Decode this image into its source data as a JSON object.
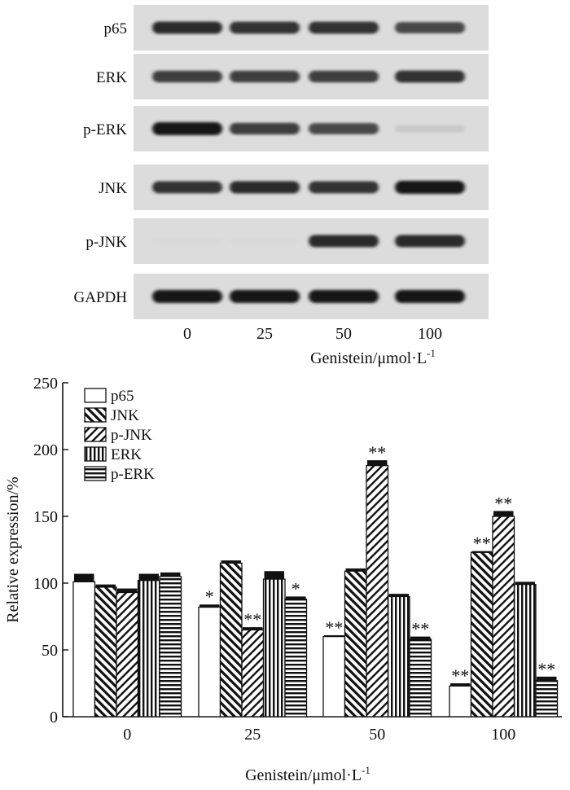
{
  "blot": {
    "lane_labels": [
      "0",
      "25",
      "50",
      "100"
    ],
    "xlabel": "Genistein/μmol·L",
    "xlabel_sup": "-1",
    "rows": [
      {
        "label": "p65",
        "intensities": [
          0.9,
          0.85,
          0.85,
          0.75
        ]
      },
      {
        "label": "ERK",
        "intensities": [
          0.8,
          0.8,
          0.8,
          0.85
        ]
      },
      {
        "label": "p-ERK",
        "intensities": [
          1.0,
          0.8,
          0.75,
          0.2
        ]
      },
      {
        "label": "JNK",
        "intensities": [
          0.85,
          0.9,
          0.85,
          1.0
        ]
      },
      {
        "label": "p-JNK",
        "intensities": [
          0.05,
          0.05,
          0.9,
          0.9
        ]
      },
      {
        "label": "GAPDH",
        "intensities": [
          1.0,
          1.0,
          1.0,
          1.0
        ]
      }
    ]
  },
  "chart_data": {
    "type": "bar",
    "categories": [
      "0",
      "25",
      "50",
      "100"
    ],
    "xlabel": "Genistein/μmol·L",
    "xlabel_sup": "-1",
    "ylabel": "Relative expression/%",
    "ylim": [
      0,
      250
    ],
    "yticks": [
      0,
      50,
      100,
      150,
      200,
      250
    ],
    "legend_position": "top-left",
    "series": [
      {
        "name": "p65",
        "pattern": "white",
        "values": [
          101,
          82,
          60,
          23
        ],
        "errors": [
          6,
          2,
          1,
          2
        ],
        "marks": [
          "",
          "*",
          "**",
          "**"
        ]
      },
      {
        "name": "JNK",
        "pattern": "diag-right",
        "values": [
          97,
          115,
          109,
          123
        ],
        "errors": [
          2,
          2,
          2,
          1
        ],
        "marks": [
          "",
          "",
          "",
          "**"
        ]
      },
      {
        "name": "p-JNK",
        "pattern": "diag-left",
        "values": [
          93,
          65,
          188,
          150
        ],
        "errors": [
          3,
          2,
          4,
          4
        ],
        "marks": [
          "",
          "**",
          "**",
          "**"
        ]
      },
      {
        "name": "ERK",
        "pattern": "vertical",
        "values": [
          102,
          103,
          90,
          99
        ],
        "errors": [
          5,
          6,
          2,
          2
        ],
        "marks": [
          "",
          "",
          "",
          ""
        ]
      },
      {
        "name": "p-ERK",
        "pattern": "horizontal",
        "values": [
          105,
          88,
          58,
          27
        ],
        "errors": [
          3,
          2,
          2,
          3
        ],
        "marks": [
          "",
          "*",
          "**",
          "**"
        ]
      }
    ]
  }
}
